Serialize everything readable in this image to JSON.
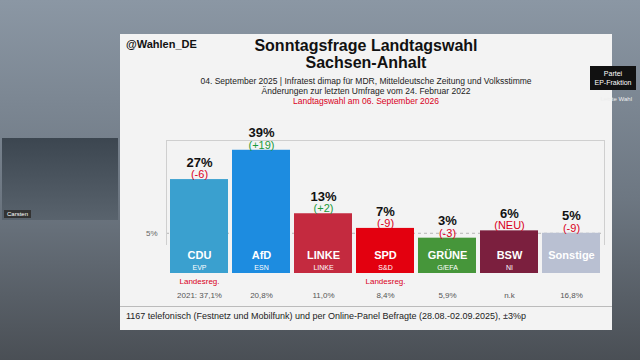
{
  "chart_data": {
    "type": "bar",
    "source_handle": "@Wahlen_DE",
    "title": "Sonntagsfrage Landtagswahl\nSachsen-Anhalt",
    "subtitle": "04. September 2025 | Infratest dimap für MDR, Mitteldeutsche Zeitung und Volksstimme",
    "change_note": "Änderungen zur letzten Umfrage vom 24. Februar 2022",
    "election_note": "Landtagswahl am 06. September 2026",
    "categories": [
      "CDU",
      "AfD",
      "LINKE",
      "SPD",
      "GRÜNE",
      "BSW",
      "Sonstige"
    ],
    "values": [
      27,
      39,
      13,
      7,
      3,
      6,
      5
    ],
    "value_labels": [
      "27%",
      "39%",
      "13%",
      "7%",
      "3%",
      "6%",
      "5%"
    ],
    "changes": [
      "(-6)",
      "(+19)",
      "(+2)",
      "(-9)",
      "(-3)",
      "(NEU)",
      "(-9)"
    ],
    "ep_groups": [
      "EVP",
      "ESN",
      "LINKE",
      "S&D",
      "G/EFA",
      "NI",
      null
    ],
    "government": [
      "Landesreg.",
      null,
      null,
      "Landesreg.",
      null,
      null,
      null
    ],
    "previous_result": [
      "2021: 37,1%",
      "20,8%",
      "11,0%",
      "8,4%",
      "5,9%",
      "n.k",
      "16,8%"
    ],
    "colors": [
      "#3aa0cf",
      "#1d8ce0",
      "#c42a3f",
      "#e3000f",
      "#46963a",
      "#7b1f3e",
      "#b9c0d2"
    ],
    "ylim": [
      0,
      43
    ],
    "yticks": [
      {
        "value": 5,
        "label": "5%"
      }
    ],
    "grid": true,
    "data_labels": true,
    "tick_labels": "y",
    "note": "1167 telefonisch (Festnetz und Mobilfunk) und per Online-Panel Befragte (28.08.-02.09.2025), ±3%p",
    "legend_box": [
      "Partei",
      "EP-Fraktion",
      "Letzte Wahl"
    ],
    "presenter": "Carsten"
  }
}
